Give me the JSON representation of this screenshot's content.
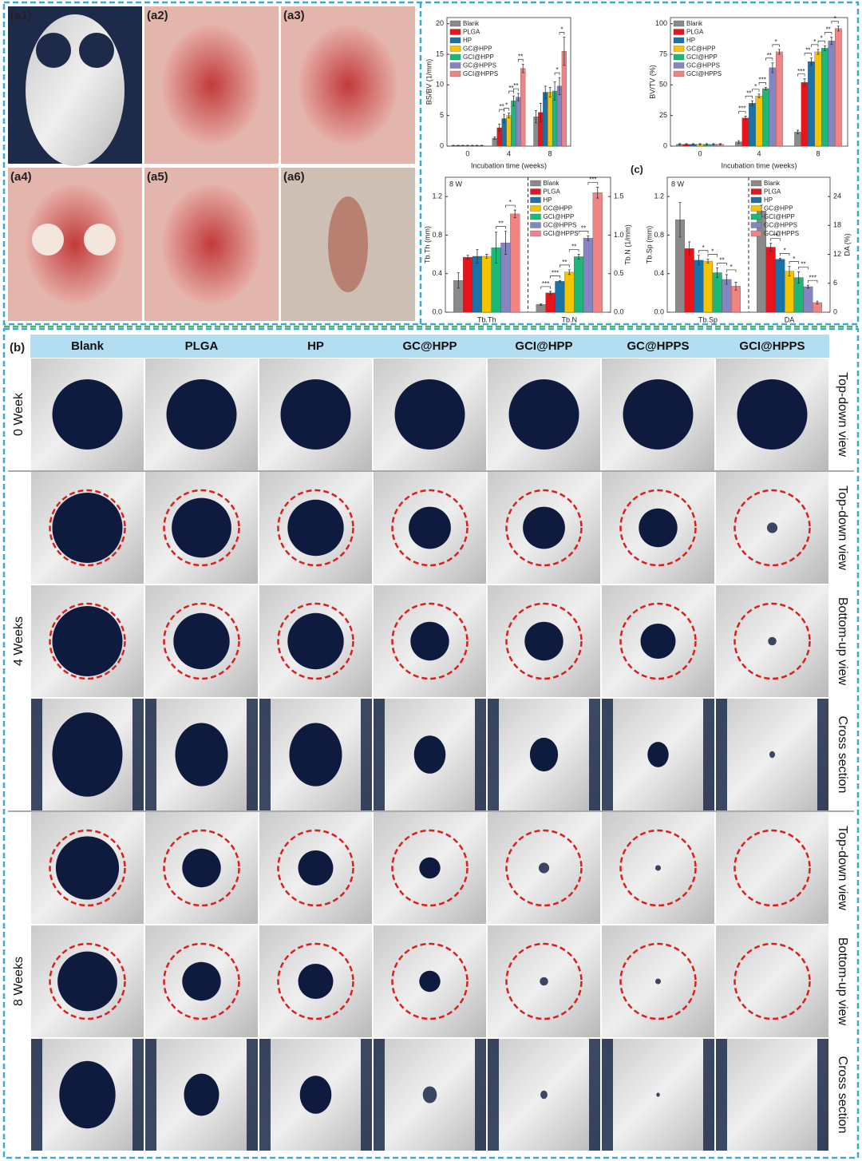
{
  "panel_a": {
    "labels": [
      "(a1)",
      "(a2)",
      "(a3)",
      "(a4)",
      "(a5)",
      "(a6)"
    ]
  },
  "panel_c_label": "(c)",
  "chart_data": [
    {
      "type": "bar",
      "ylabel": "BS/BV (1/mm)",
      "xlabel": "Incubation time (weeks)",
      "categories": [
        "0",
        "4",
        "8"
      ],
      "ylim": [
        0,
        21
      ],
      "yticks": [
        0,
        5,
        10,
        15,
        20
      ],
      "legend": "upper left",
      "series": [
        {
          "name": "Blank",
          "color": "#8a8a8a",
          "values": [
            0.1,
            1.3,
            4.8
          ],
          "errors": [
            0.05,
            0.2,
            1.0
          ]
        },
        {
          "name": "PLGA",
          "color": "#e8141b",
          "values": [
            0.1,
            3.0,
            5.5
          ],
          "errors": [
            0.05,
            0.6,
            1.5
          ]
        },
        {
          "name": "HP",
          "color": "#1a72a8",
          "values": [
            0.1,
            4.5,
            8.8
          ],
          "errors": [
            0.05,
            0.7,
            1.0
          ]
        },
        {
          "name": "GC@HPP",
          "color": "#f5c400",
          "values": [
            0.1,
            5.0,
            8.8
          ],
          "errors": [
            0.05,
            0.4,
            0.8
          ]
        },
        {
          "name": "GCI@HPP",
          "color": "#1fb777",
          "values": [
            0.1,
            7.4,
            9.0
          ],
          "errors": [
            0.05,
            0.8,
            1.5
          ]
        },
        {
          "name": "GC@HPPS",
          "color": "#8585c2",
          "values": [
            0.1,
            8.0,
            9.8
          ],
          "errors": [
            0.05,
            0.6,
            1.4
          ]
        },
        {
          "name": "GCI@HPPS",
          "color": "#f08484",
          "values": [
            0.1,
            12.7,
            15.5
          ],
          "errors": [
            0.05,
            0.7,
            2.3
          ]
        }
      ],
      "significance": [
        [],
        [
          "**",
          "*",
          "**",
          "**",
          "**"
        ],
        [
          "*",
          "*"
        ]
      ]
    },
    {
      "type": "bar",
      "ylabel": "BV/TV (%)",
      "xlabel": "Incubation time (weeks)",
      "categories": [
        "0",
        "4",
        "8"
      ],
      "ylim": [
        0,
        105
      ],
      "yticks": [
        0,
        25,
        50,
        75,
        100
      ],
      "legend": "upper left",
      "series": [
        {
          "name": "Blank",
          "color": "#8a8a8a",
          "values": [
            1.5,
            3.5,
            11.5
          ],
          "errors": [
            0.5,
            1,
            1.5
          ]
        },
        {
          "name": "PLGA",
          "color": "#e8141b",
          "values": [
            1.5,
            23,
            52
          ],
          "errors": [
            0.5,
            1.5,
            3
          ]
        },
        {
          "name": "HP",
          "color": "#1a72a8",
          "values": [
            1.5,
            35,
            69
          ],
          "errors": [
            0.5,
            2,
            3
          ]
        },
        {
          "name": "GC@HPP",
          "color": "#f5c400",
          "values": [
            1.5,
            41,
            77
          ],
          "errors": [
            0.5,
            1.5,
            2
          ]
        },
        {
          "name": "GCI@HPP",
          "color": "#1fb777",
          "values": [
            1.5,
            47,
            80
          ],
          "errors": [
            0.5,
            1,
            2
          ]
        },
        {
          "name": "GC@HPPS",
          "color": "#8585c2",
          "values": [
            1.5,
            64,
            86
          ],
          "errors": [
            0.5,
            4,
            3
          ]
        },
        {
          "name": "GCI@HPPS",
          "color": "#f08484",
          "values": [
            1.5,
            77,
            96
          ],
          "errors": [
            0.5,
            2,
            2
          ]
        }
      ],
      "significance": [
        [],
        [
          "***",
          "**",
          "*",
          "***",
          "**",
          "*"
        ],
        [
          "***",
          "**",
          "*",
          "*",
          "**",
          "*"
        ]
      ]
    },
    {
      "type": "bar",
      "subtitle": "8 W",
      "ylabel": "Tb.Th (mm)",
      "y2label": "Tb.N (1/mm)",
      "categories": [
        "Tb.Th",
        "Tb.N"
      ],
      "category_axis": [
        "y",
        "y2"
      ],
      "ylim": [
        0,
        1.4
      ],
      "yticks": [
        {
          "value": 0,
          "label": "0.0"
        },
        0.4,
        0.8,
        1.2
      ],
      "y2lim": [
        0,
        1.75
      ],
      "y2ticks": [
        {
          "value": 0,
          "label": "0.0"
        },
        0.5,
        {
          "value": 1,
          "label": "1.0"
        },
        1.5
      ],
      "legend": "upper center",
      "series": [
        {
          "name": "Blank",
          "color": "#8a8a8a",
          "values": [
            0.33,
            0.1
          ],
          "errors": [
            0.08,
            0.01
          ]
        },
        {
          "name": "PLGA",
          "color": "#e8141b",
          "values": [
            0.57,
            0.25
          ],
          "errors": [
            0.02,
            0.02
          ]
        },
        {
          "name": "HP",
          "color": "#1a72a8",
          "values": [
            0.58,
            0.4
          ],
          "errors": [
            0.07,
            0.01
          ]
        },
        {
          "name": "GC@HPP",
          "color": "#f5c400",
          "values": [
            0.58,
            0.52
          ],
          "errors": [
            0.02,
            0.03
          ]
        },
        {
          "name": "GCI@HPP",
          "color": "#1fb777",
          "values": [
            0.67,
            0.72
          ],
          "errors": [
            0.16,
            0.03
          ]
        },
        {
          "name": "GC@HPPS",
          "color": "#8585c2",
          "values": [
            0.72,
            0.96
          ],
          "errors": [
            0.12,
            0.03
          ]
        },
        {
          "name": "GCI@HPPS",
          "color": "#f08484",
          "values": [
            1.02,
            1.55
          ],
          "errors": [
            0.04,
            0.07
          ]
        }
      ],
      "significance": [
        [
          "**",
          "*"
        ],
        [
          "***",
          "***",
          "**",
          "**",
          "**",
          "***"
        ]
      ]
    },
    {
      "type": "bar",
      "subtitle": "8 W",
      "ylabel": "Tb.Sp (mm)",
      "y2label": "DA (%)",
      "categories": [
        "Tb.Sp",
        "DA"
      ],
      "category_axis": [
        "y",
        "y2"
      ],
      "ylim": [
        0,
        1.4
      ],
      "yticks": [
        {
          "value": 0,
          "label": "0.0"
        },
        0.4,
        0.8,
        1.2
      ],
      "y2lim": [
        0,
        28
      ],
      "y2ticks": [
        0,
        6,
        12,
        18,
        24
      ],
      "legend": "upper center",
      "series": [
        {
          "name": "Blank",
          "color": "#8a8a8a",
          "values": [
            0.96,
            21
          ],
          "errors": [
            0.18,
            1.2
          ]
        },
        {
          "name": "PLGA",
          "color": "#e8141b",
          "values": [
            0.66,
            13.5
          ],
          "errors": [
            0.07,
            0.8
          ]
        },
        {
          "name": "HP",
          "color": "#1a72a8",
          "values": [
            0.54,
            11
          ],
          "errors": [
            0.05,
            0.2
          ]
        },
        {
          "name": "GC@HPP",
          "color": "#f5c400",
          "values": [
            0.53,
            8.5
          ],
          "errors": [
            0.02,
            1
          ]
        },
        {
          "name": "GCI@HPP",
          "color": "#1fb777",
          "values": [
            0.41,
            7.2
          ],
          "errors": [
            0.05,
            1.2
          ]
        },
        {
          "name": "GC@HPPS",
          "color": "#8585c2",
          "values": [
            0.34,
            5.3
          ],
          "errors": [
            0.05,
            0.3
          ]
        },
        {
          "name": "GCI@HPPS",
          "color": "#f08484",
          "values": [
            0.27,
            2
          ],
          "errors": [
            0.04,
            0.3
          ]
        }
      ],
      "significance": [
        [
          "*",
          "*",
          "**",
          "*"
        ],
        [
          "**",
          "*",
          "*",
          "**",
          "***"
        ]
      ]
    }
  ],
  "panel_b": {
    "label": "(b)",
    "columns": [
      "Blank",
      "PLGA",
      "HP",
      "GC@HPP",
      "GCI@HPP",
      "GC@HPPS",
      "GCI@HPPS"
    ],
    "groups": [
      {
        "time": "0 Week",
        "views": [
          "Top-down view"
        ]
      },
      {
        "time": "4 Weeks",
        "views": [
          "Top-down view",
          "Bottom-up view",
          "Cross section"
        ]
      },
      {
        "time": "8 Weeks",
        "views": [
          "Top-down view",
          "Bottom-up view",
          "Cross section"
        ]
      }
    ]
  }
}
